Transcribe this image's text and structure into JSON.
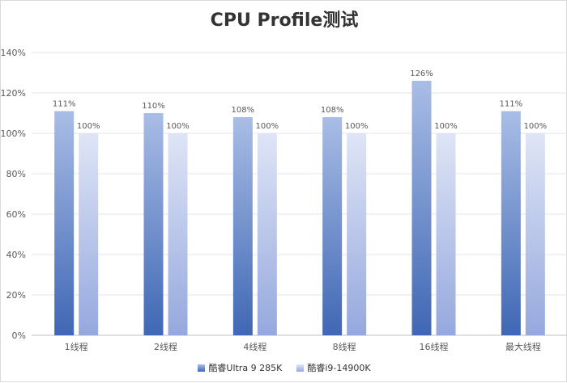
{
  "chart_data": {
    "type": "bar",
    "title": "CPU Profile测试",
    "categories": [
      "1线程",
      "2线程",
      "4线程",
      "8线程",
      "16线程",
      "最大线程"
    ],
    "series": [
      {
        "name": "酷睿Ultra 9 285K",
        "values": [
          111,
          110,
          108,
          108,
          126,
          111
        ],
        "labels": [
          "111%",
          "110%",
          "108%",
          "108%",
          "126%",
          "111%"
        ],
        "color_top": "#a9bde6",
        "color_bottom": "#3f67b4"
      },
      {
        "name": "酷睿i9-14900K",
        "values": [
          100,
          100,
          100,
          100,
          100,
          100
        ],
        "labels": [
          "100%",
          "100%",
          "100%",
          "100%",
          "100%",
          "100%"
        ],
        "color_top": "#dfe5f6",
        "color_bottom": "#95a8de"
      }
    ],
    "y_ticks": [
      "0%",
      "20%",
      "40%",
      "60%",
      "80%",
      "100%",
      "120%",
      "140%"
    ],
    "ylim": [
      0,
      140
    ],
    "xlabel": "",
    "ylabel": "",
    "grid": true,
    "legend_position": "bottom"
  }
}
